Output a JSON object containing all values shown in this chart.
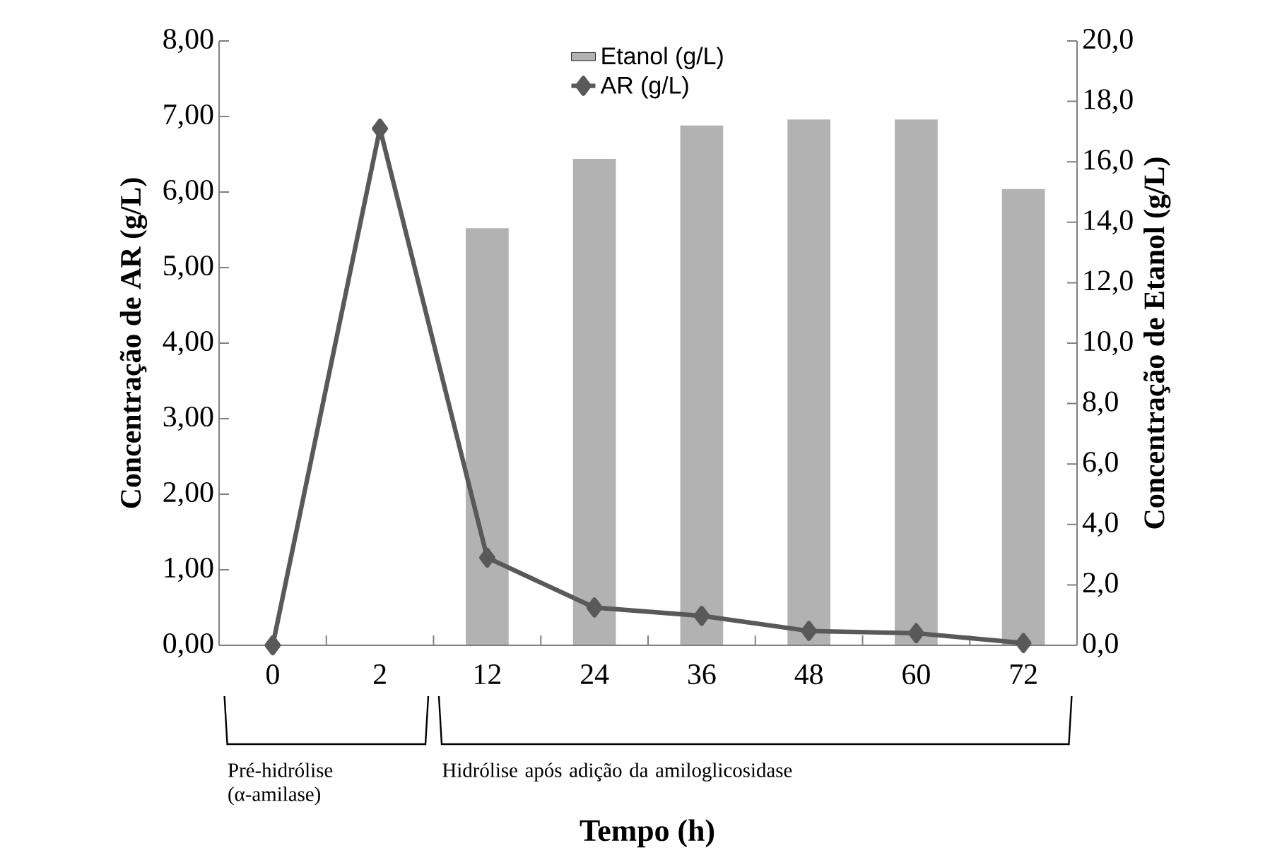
{
  "chart_data": {
    "type": "line",
    "categories": [
      "0",
      "2",
      "12",
      "24",
      "36",
      "48",
      "60",
      "72"
    ],
    "series": [
      {
        "name": "Etanol (g/L)",
        "type": "bar",
        "axis": "y2",
        "color": "#b2b2b2",
        "values": [
          null,
          null,
          13.8,
          16.1,
          17.2,
          17.4,
          17.4,
          15.1
        ]
      },
      {
        "name": "AR (g/L)",
        "color": "#595959",
        "marker": "diamond",
        "values": [
          0,
          6.84,
          1.16,
          0.5,
          0.39,
          0.19,
          0.16,
          0.03
        ]
      }
    ],
    "xlabel": "Tempo (h)",
    "ylabel": "Concentração de AR (g/L)",
    "y2label": "Concentração de Etanol (g/L)",
    "ylim": [
      0,
      8
    ],
    "yticks": [
      {
        "value": 0,
        "label": "0,00"
      },
      {
        "value": 1,
        "label": "1,00"
      },
      {
        "value": 2,
        "label": "2,00"
      },
      {
        "value": 3,
        "label": "3,00"
      },
      {
        "value": 4,
        "label": "4,00"
      },
      {
        "value": 5,
        "label": "5,00"
      },
      {
        "value": 6,
        "label": "6,00"
      },
      {
        "value": 7,
        "label": "7,00"
      },
      {
        "value": 8,
        "label": "8,00"
      }
    ],
    "y2lim": [
      0,
      20
    ],
    "y2ticks": [
      {
        "value": 0,
        "label": "0,0"
      },
      {
        "value": 2,
        "label": "2,0"
      },
      {
        "value": 4,
        "label": "4,0"
      },
      {
        "value": 6,
        "label": "6,0"
      },
      {
        "value": 8,
        "label": "8,0"
      },
      {
        "value": 10,
        "label": "10,0"
      },
      {
        "value": 12,
        "label": "12,0"
      },
      {
        "value": 14,
        "label": "14,0"
      },
      {
        "value": 16,
        "label": "16,0"
      },
      {
        "value": 18,
        "label": "18,0"
      },
      {
        "value": 20,
        "label": "20,0"
      }
    ],
    "annotations": [
      "Pré-hidrólise (α-amilase)",
      "Hidrólise após adição da amiloglicosidase"
    ],
    "legend": "top",
    "grid": false
  }
}
